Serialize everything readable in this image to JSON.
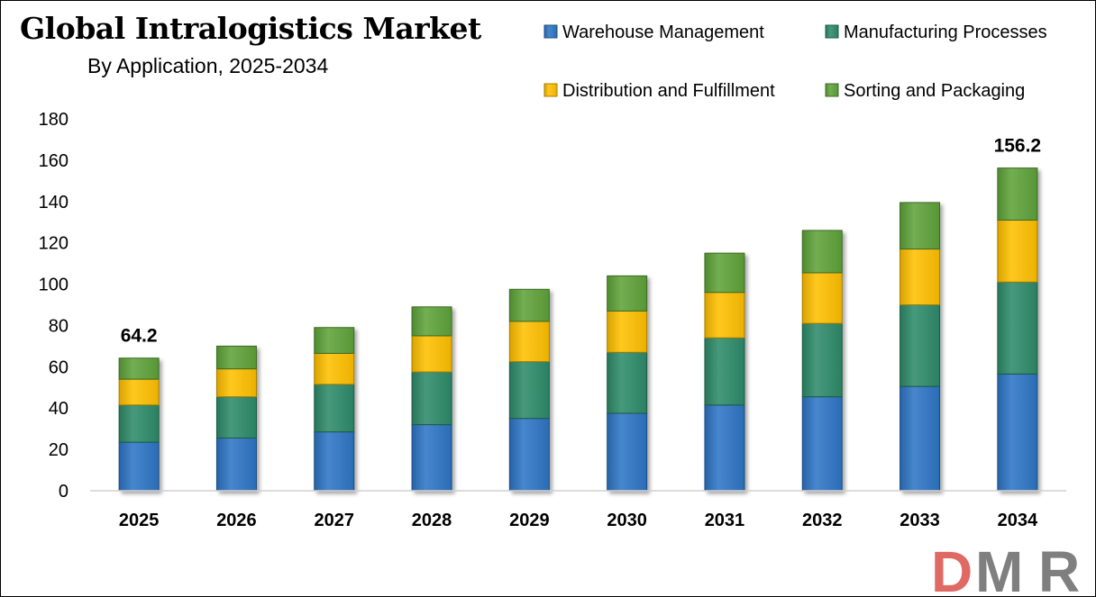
{
  "title": "Global Intralogistics Market",
  "subtitle": "By Application, 2025-2034",
  "logo": {
    "letters": [
      "D",
      "M",
      "R"
    ],
    "colors": [
      "#e06a63",
      "#7f7f7f",
      "#7f7f7f"
    ]
  },
  "chart_data": {
    "type": "bar",
    "stacked": true,
    "categories": [
      "2025",
      "2026",
      "2027",
      "2028",
      "2029",
      "2030",
      "2031",
      "2032",
      "2033",
      "2034"
    ],
    "series": [
      {
        "name": "Warehouse Management",
        "color": "#2e75c6",
        "values": [
          23.5,
          25.5,
          28.5,
          32.0,
          35.0,
          37.5,
          41.5,
          45.5,
          50.5,
          56.5
        ]
      },
      {
        "name": "Manufacturing Processes",
        "color": "#2e8b6a",
        "values": [
          18.0,
          20.0,
          23.0,
          25.5,
          27.5,
          29.5,
          32.5,
          35.5,
          39.5,
          44.5
        ]
      },
      {
        "name": "Distribution and Fulfillment",
        "color": "#ffc000",
        "values": [
          12.5,
          13.5,
          15.0,
          17.5,
          19.5,
          20.0,
          22.0,
          24.5,
          27.0,
          30.0
        ]
      },
      {
        "name": "Sorting and Packaging",
        "color": "#5fa33a",
        "values": [
          10.2,
          11.0,
          12.5,
          14.0,
          15.5,
          17.0,
          19.0,
          20.5,
          22.5,
          25.2
        ]
      }
    ],
    "data_labels": [
      {
        "category": "2025",
        "text": "64.2"
      },
      {
        "category": "2034",
        "text": "156.2"
      }
    ],
    "ylim": [
      0,
      180
    ],
    "yticks": [
      "0",
      "20",
      "40",
      "60",
      "80",
      "100",
      "120",
      "140",
      "160",
      "180"
    ],
    "grid": false,
    "legend": "top-right",
    "xlabel": "",
    "ylabel": ""
  }
}
